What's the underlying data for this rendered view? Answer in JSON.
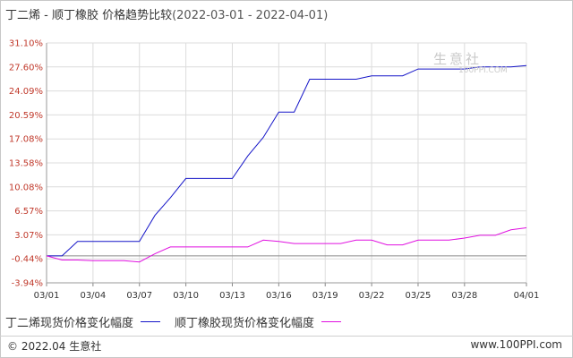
{
  "header": {
    "title": "丁二烯 - 顺丁橡胶 价格趋势比较",
    "date_range": "(2022-03-01 - 2022-04-01)"
  },
  "chart_data": {
    "type": "line",
    "title": "丁二烯 - 顺丁橡胶 价格趋势比较",
    "subtitle": "(2022-03-01 - 2022-04-01)",
    "xlabel": "",
    "ylabel": "",
    "x": [
      "03/01",
      "03/02",
      "03/03",
      "03/04",
      "03/05",
      "03/06",
      "03/07",
      "03/08",
      "03/09",
      "03/10",
      "03/11",
      "03/12",
      "03/13",
      "03/14",
      "03/15",
      "03/16",
      "03/17",
      "03/18",
      "03/19",
      "03/20",
      "03/21",
      "03/22",
      "03/23",
      "03/24",
      "03/25",
      "03/26",
      "03/27",
      "03/28",
      "03/29",
      "03/30",
      "03/31",
      "04/01"
    ],
    "x_tick_labels": [
      "03/01",
      "03/04",
      "03/07",
      "03/10",
      "03/13",
      "03/16",
      "03/19",
      "03/22",
      "03/25",
      "03/28",
      "04/01"
    ],
    "y_tick_labels": [
      "31.10%",
      "27.60%",
      "24.09%",
      "20.59%",
      "17.08%",
      "13.58%",
      "10.08%",
      "6.57%",
      "3.07%",
      "-0.44%",
      "-3.94%"
    ],
    "y_ticks": [
      31.1,
      27.6,
      24.09,
      20.59,
      17.08,
      13.58,
      10.08,
      6.57,
      3.07,
      -0.44,
      -3.94
    ],
    "ylim": [
      -3.94,
      31.1
    ],
    "grid": true,
    "legend_position": "bottom",
    "series": [
      {
        "name": "丁二烯现货价格变化幅度",
        "color": "#1515c8",
        "values": [
          0,
          0,
          2.1,
          2.1,
          2.1,
          2.1,
          2.1,
          5.9,
          8.5,
          11.3,
          11.3,
          11.3,
          11.3,
          14.6,
          17.3,
          21.0,
          21.0,
          25.8,
          25.8,
          25.8,
          25.8,
          26.3,
          26.3,
          26.3,
          27.3,
          27.3,
          27.3,
          27.3,
          27.6,
          27.6,
          27.6,
          27.8
        ]
      },
      {
        "name": "顺丁橡胶现货价格变化幅度",
        "color": "#e010e0",
        "values": [
          0,
          -0.6,
          -0.6,
          -0.7,
          -0.7,
          -0.7,
          -0.9,
          0.3,
          1.3,
          1.3,
          1.3,
          1.3,
          1.3,
          1.3,
          2.3,
          2.1,
          1.8,
          1.8,
          1.8,
          1.8,
          2.3,
          2.3,
          1.6,
          1.6,
          2.3,
          2.3,
          2.3,
          2.6,
          3.0,
          3.0,
          3.8,
          4.1
        ]
      }
    ]
  },
  "legend": {
    "series1_label": "丁二烯现货价格变化幅度",
    "series1_color": "#1515c8",
    "series2_label": "顺丁橡胶现货价格变化幅度",
    "series2_color": "#e010e0"
  },
  "watermark": {
    "name": "生意社",
    "url": "100PPI.COM"
  },
  "footer": {
    "copyright": "© 2022.04 生意社",
    "site": "www.100PPI.com"
  }
}
